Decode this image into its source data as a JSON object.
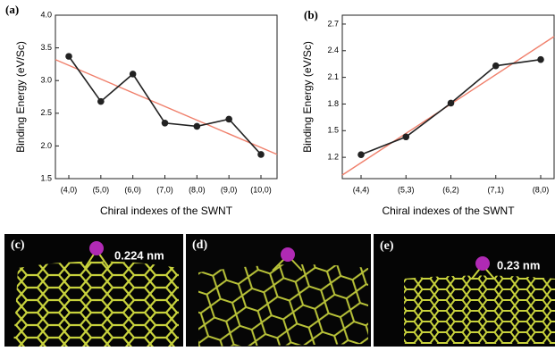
{
  "chart_data": [
    {
      "type": "line",
      "panel": "(a)",
      "ylabel": "Binding Energy (eV/Sc)",
      "xlabel": "Chiral indexes of the SWNT",
      "categories": [
        "(4,0)",
        "(5,0)",
        "(6,0)",
        "(7,0)",
        "(8,0)",
        "(9,0)",
        "(10,0)"
      ],
      "values": [
        3.37,
        2.68,
        3.1,
        2.35,
        2.3,
        2.41,
        1.87
      ],
      "color": "#222222",
      "ylim": [
        1.5,
        4.0
      ],
      "yticks": [
        1.5,
        {
          "value": 2,
          "label": "2.0"
        },
        2.5,
        {
          "value": 3,
          "label": "3.0"
        },
        3.5,
        {
          "value": 4,
          "label": "4.0"
        }
      ],
      "trendline": {
        "start": 3.32,
        "end": 1.87,
        "color": "#f0806c"
      }
    },
    {
      "type": "line",
      "panel": "(b)",
      "ylabel": "Binding Energy (eV/Sc)",
      "xlabel": "Chiral indexes of the SWNT",
      "categories": [
        "(4,4)",
        "(5,3)",
        "(6,2)",
        "(7,1)",
        "(8,0)"
      ],
      "values": [
        1.23,
        1.43,
        1.81,
        2.23,
        2.3
      ],
      "color": "#222222",
      "ylim": [
        0.96,
        2.8
      ],
      "yticks": [
        1.2,
        1.5,
        1.8,
        2.1,
        2.4,
        2.7
      ],
      "trendline": {
        "start": 1.0,
        "end": 2.56,
        "color": "#f0806c"
      }
    }
  ],
  "images": [
    {
      "label": "(c)",
      "annotation": "0.224 nm"
    },
    {
      "label": "(d)"
    },
    {
      "label": "(e)",
      "annotation": "0.23 nm"
    }
  ]
}
